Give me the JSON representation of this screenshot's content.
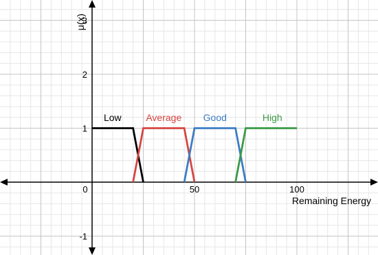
{
  "chart_data": {
    "type": "line",
    "title": "",
    "xlabel": "Remaining Energy",
    "ylabel": "μ(x)",
    "xlim": [
      -45,
      140
    ],
    "ylim": [
      -1.3,
      3.35
    ],
    "grid": true,
    "x_ticks": [
      {
        "value": 0,
        "label": "0"
      },
      {
        "value": 50,
        "label": "50"
      },
      {
        "value": 100,
        "label": "100"
      }
    ],
    "y_ticks": [
      {
        "value": -1,
        "label": "-1"
      },
      {
        "value": 1,
        "label": "1"
      },
      {
        "value": 2,
        "label": "2"
      },
      {
        "value": 3,
        "label": "3"
      }
    ],
    "series": [
      {
        "name": "Low",
        "color": "#000000",
        "label_x": 10,
        "label_y": 1.2,
        "points": [
          [
            0,
            1
          ],
          [
            20,
            1
          ],
          [
            25,
            0
          ]
        ]
      },
      {
        "name": "Average",
        "color": "#d64541",
        "label_x": 35,
        "label_y": 1.2,
        "points": [
          [
            20,
            0
          ],
          [
            25,
            1
          ],
          [
            45,
            1
          ],
          [
            50,
            0
          ]
        ]
      },
      {
        "name": "Good",
        "color": "#3b7dc4",
        "label_x": 60,
        "label_y": 1.2,
        "points": [
          [
            45,
            0
          ],
          [
            50,
            1
          ],
          [
            70,
            1
          ],
          [
            75,
            0
          ]
        ]
      },
      {
        "name": "High",
        "color": "#3a9a45",
        "label_x": 88,
        "label_y": 1.2,
        "points": [
          [
            70,
            0
          ],
          [
            75,
            1
          ],
          [
            100,
            1
          ]
        ]
      }
    ]
  }
}
